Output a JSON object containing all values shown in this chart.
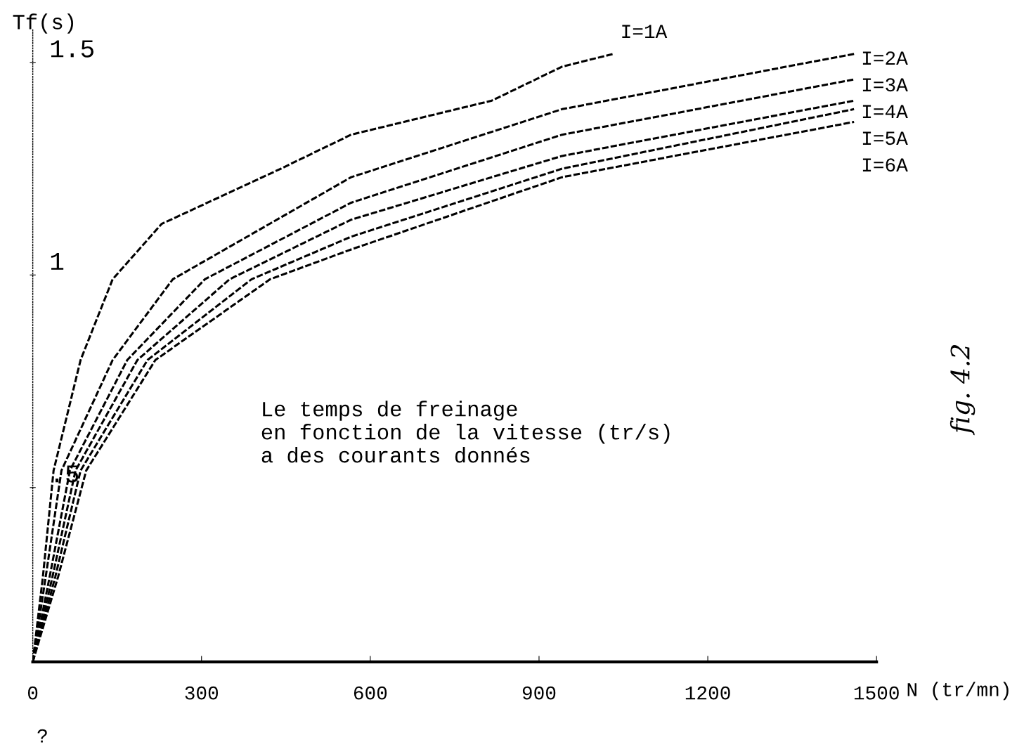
{
  "chart_data": {
    "type": "line",
    "xlabel": "N (tr/mn)",
    "ylabel": "Tf(s)",
    "xlim": [
      0,
      1500
    ],
    "xticks": [
      0,
      300,
      600,
      900,
      1200,
      1500
    ],
    "ylim": [
      0.09,
      1.58
    ],
    "yticks": [
      {
        "value": 0.5,
        "label": ".5"
      },
      1,
      1.5
    ],
    "grid": false,
    "marker": "none",
    "line_style": "dashed",
    "annotations": [
      "Le temps de freinage\nen fonction de la vitesse (tr/s)\na des courants donnés",
      "?",
      "fig. 4.2"
    ],
    "series": [
      {
        "name": "I=1A",
        "color": "#000000",
        "x": [
          0,
          18,
          37,
          85,
          142,
          229,
          441,
          566,
          816,
          941,
          1032
        ],
        "values": [
          0.09,
          0.29,
          0.54,
          0.8,
          0.99,
          1.12,
          1.25,
          1.33,
          1.41,
          1.49,
          1.52
        ]
      },
      {
        "name": "I=2A",
        "color": "#000000",
        "x": [
          0,
          23,
          51,
          142,
          249,
          566,
          941,
          1460
        ],
        "values": [
          0.09,
          0.29,
          0.54,
          0.8,
          0.99,
          1.23,
          1.39,
          1.52
        ]
      },
      {
        "name": "I=3A",
        "color": "#000000",
        "x": [
          0,
          30,
          66,
          168,
          306,
          566,
          941,
          1460
        ],
        "values": [
          0.09,
          0.29,
          0.54,
          0.8,
          0.99,
          1.17,
          1.33,
          1.46
        ]
      },
      {
        "name": "I=4A",
        "color": "#000000",
        "x": [
          0,
          35,
          76,
          186,
          350,
          566,
          941,
          1460
        ],
        "values": [
          0.09,
          0.29,
          0.54,
          0.8,
          0.99,
          1.13,
          1.28,
          1.41
        ]
      },
      {
        "name": "I=5A",
        "color": "#000000",
        "x": [
          0,
          40,
          85,
          204,
          389,
          566,
          941,
          1460
        ],
        "values": [
          0.09,
          0.29,
          0.54,
          0.8,
          0.99,
          1.09,
          1.25,
          1.39
        ]
      },
      {
        "name": "I=6A",
        "color": "#000000",
        "x": [
          0,
          45,
          95,
          218,
          422,
          566,
          941,
          1460
        ],
        "values": [
          0.09,
          0.29,
          0.54,
          0.8,
          0.99,
          1.06,
          1.23,
          1.36
        ]
      }
    ]
  }
}
